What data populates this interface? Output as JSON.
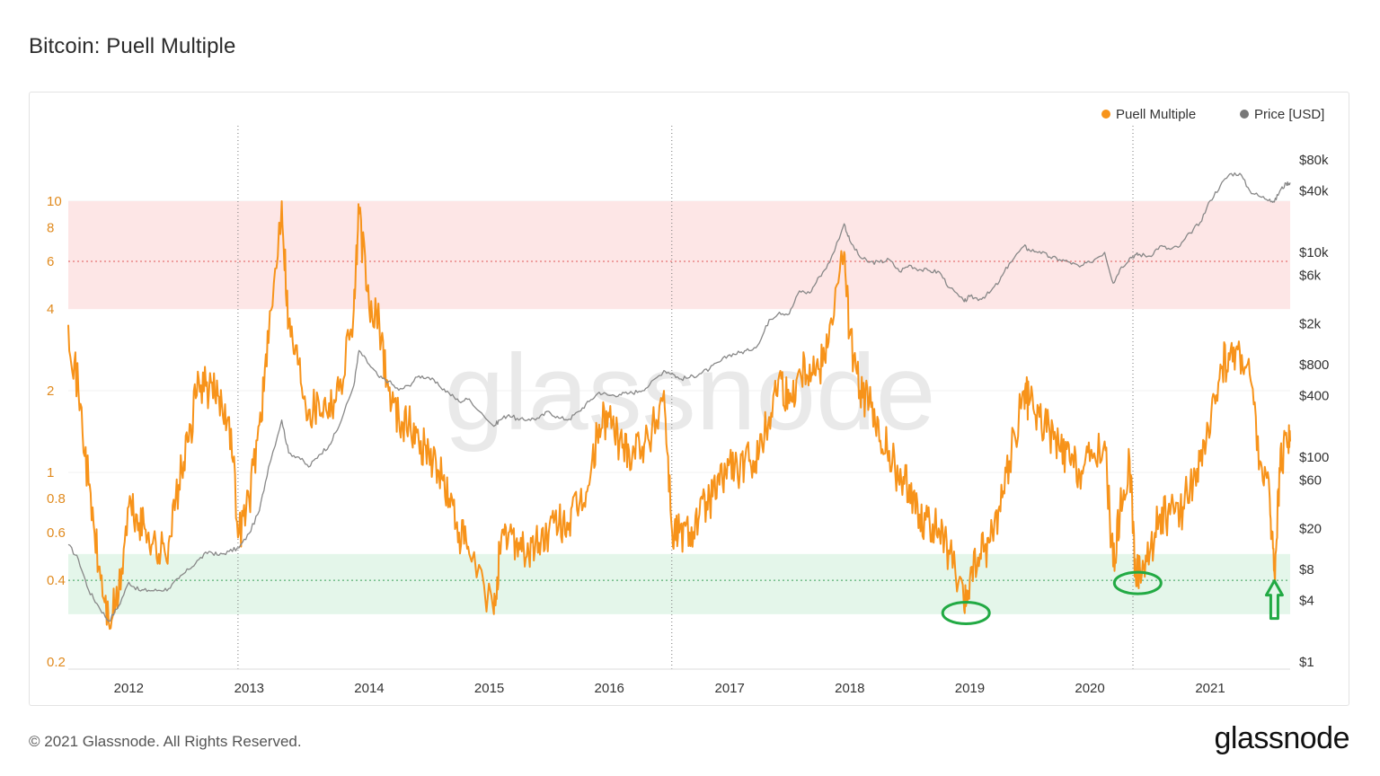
{
  "header": {
    "title": "Bitcoin: Puell Multiple"
  },
  "footer": {
    "copyright": "© 2021 Glassnode. All Rights Reserved.",
    "brand": "glassnode"
  },
  "watermark": "glassnode",
  "colors": {
    "puell": "#f7931a",
    "price": "#888888",
    "red_band": "#fde6e6",
    "green_band": "#e4f6ea",
    "annotation": "#22aa44"
  },
  "chart_data": {
    "type": "line",
    "title": "Bitcoin: Puell Multiple",
    "x_range": [
      "2011-07-01",
      "2021-09-01"
    ],
    "x_ticks": [
      "2012",
      "2013",
      "2014",
      "2015",
      "2016",
      "2017",
      "2018",
      "2019",
      "2020",
      "2021"
    ],
    "y_left": {
      "scale": "log",
      "ticks": [
        "10",
        "8",
        "6",
        "4",
        "2",
        "1",
        "0.8",
        "0.6",
        "0.4",
        "0.2"
      ]
    },
    "y_right": {
      "scale": "log",
      "ticks": [
        "$80k",
        "$40k",
        "$10k",
        "$6k",
        "$2k",
        "$800",
        "$400",
        "$100",
        "$60",
        "$20",
        "$8",
        "$4",
        "$1"
      ]
    },
    "legend": {
      "placement": "top-right",
      "items": [
        "Puell Multiple",
        "Price [USD]"
      ]
    },
    "bands": [
      {
        "label": "",
        "from": 4,
        "to": 10,
        "line": 6,
        "color": "red"
      },
      {
        "label": "",
        "from": 0.3,
        "to": 0.5,
        "line": 0.4,
        "color": "green"
      }
    ],
    "halvings": [
      "2012-11-28",
      "2016-07-09",
      "2020-05-11"
    ],
    "series": [
      {
        "name": "Puell Multiple",
        "axis": "left",
        "points": [
          [
            "2011-07-01",
            3.5
          ],
          [
            "2011-08-01",
            2.0
          ],
          [
            "2011-09-01",
            0.9
          ],
          [
            "2011-10-01",
            0.45
          ],
          [
            "2011-11-01",
            0.28
          ],
          [
            "2011-12-01",
            0.35
          ],
          [
            "2012-01-01",
            0.75
          ],
          [
            "2012-02-01",
            0.65
          ],
          [
            "2012-03-01",
            0.6
          ],
          [
            "2012-04-01",
            0.5
          ],
          [
            "2012-05-01",
            0.55
          ],
          [
            "2012-06-01",
            0.9
          ],
          [
            "2012-07-01",
            1.3
          ],
          [
            "2012-08-01",
            2.2
          ],
          [
            "2012-09-01",
            2.0
          ],
          [
            "2012-10-01",
            1.9
          ],
          [
            "2012-11-01",
            1.6
          ],
          [
            "2012-12-01",
            0.6
          ],
          [
            "2013-01-01",
            0.8
          ],
          [
            "2013-02-01",
            1.5
          ],
          [
            "2013-03-01",
            3.0
          ],
          [
            "2013-04-10",
            10.0
          ],
          [
            "2013-05-01",
            3.5
          ],
          [
            "2013-06-01",
            2.5
          ],
          [
            "2013-07-01",
            1.7
          ],
          [
            "2013-08-01",
            1.8
          ],
          [
            "2013-09-01",
            1.8
          ],
          [
            "2013-10-01",
            2.0
          ],
          [
            "2013-11-15",
            4.0
          ],
          [
            "2013-12-01",
            9.0
          ],
          [
            "2014-01-01",
            4.0
          ],
          [
            "2014-02-01",
            3.5
          ],
          [
            "2014-03-01",
            2.0
          ],
          [
            "2014-04-01",
            1.6
          ],
          [
            "2014-05-01",
            1.5
          ],
          [
            "2014-06-01",
            1.3
          ],
          [
            "2014-07-01",
            1.2
          ],
          [
            "2014-08-01",
            1.0
          ],
          [
            "2014-09-01",
            0.8
          ],
          [
            "2014-10-01",
            0.6
          ],
          [
            "2014-11-01",
            0.5
          ],
          [
            "2015-01-15",
            0.3
          ],
          [
            "2015-02-01",
            0.5
          ],
          [
            "2015-03-01",
            0.6
          ],
          [
            "2015-04-01",
            0.55
          ],
          [
            "2015-05-01",
            0.5
          ],
          [
            "2015-06-01",
            0.55
          ],
          [
            "2015-07-01",
            0.6
          ],
          [
            "2015-08-01",
            0.65
          ],
          [
            "2015-09-01",
            0.65
          ],
          [
            "2015-10-01",
            0.75
          ],
          [
            "2015-11-01",
            0.9
          ],
          [
            "2015-12-01",
            1.5
          ],
          [
            "2016-01-01",
            1.6
          ],
          [
            "2016-02-01",
            1.3
          ],
          [
            "2016-03-01",
            1.2
          ],
          [
            "2016-04-01",
            1.3
          ],
          [
            "2016-05-01",
            1.3
          ],
          [
            "2016-06-15",
            2.0
          ],
          [
            "2016-07-10",
            0.6
          ],
          [
            "2016-08-01",
            0.6
          ],
          [
            "2016-09-01",
            0.6
          ],
          [
            "2016-10-01",
            0.7
          ],
          [
            "2016-11-01",
            0.8
          ],
          [
            "2016-12-01",
            0.9
          ],
          [
            "2017-01-01",
            1.1
          ],
          [
            "2017-02-01",
            1.0
          ],
          [
            "2017-03-01",
            1.1
          ],
          [
            "2017-04-01",
            1.2
          ],
          [
            "2017-05-01",
            1.6
          ],
          [
            "2017-06-01",
            2.3
          ],
          [
            "2017-07-01",
            1.8
          ],
          [
            "2017-08-01",
            2.4
          ],
          [
            "2017-09-01",
            2.5
          ],
          [
            "2017-10-01",
            2.4
          ],
          [
            "2017-11-01",
            3.5
          ],
          [
            "2017-12-15",
            6.5
          ],
          [
            "2018-01-01",
            3.2
          ],
          [
            "2018-02-01",
            2.0
          ],
          [
            "2018-03-01",
            1.8
          ],
          [
            "2018-04-01",
            1.3
          ],
          [
            "2018-05-01",
            1.2
          ],
          [
            "2018-06-01",
            0.9
          ],
          [
            "2018-07-01",
            0.9
          ],
          [
            "2018-08-01",
            0.7
          ],
          [
            "2018-09-01",
            0.65
          ],
          [
            "2018-10-01",
            0.6
          ],
          [
            "2018-11-01",
            0.5
          ],
          [
            "2018-12-15",
            0.31
          ],
          [
            "2019-01-01",
            0.4
          ],
          [
            "2019-02-01",
            0.5
          ],
          [
            "2019-03-01",
            0.55
          ],
          [
            "2019-04-01",
            0.75
          ],
          [
            "2019-05-01",
            1.1
          ],
          [
            "2019-06-15",
            2.0
          ],
          [
            "2019-07-01",
            1.8
          ],
          [
            "2019-08-01",
            1.6
          ],
          [
            "2019-09-01",
            1.4
          ],
          [
            "2019-10-01",
            1.2
          ],
          [
            "2019-11-01",
            1.1
          ],
          [
            "2019-12-01",
            1.0
          ],
          [
            "2020-01-01",
            1.1
          ],
          [
            "2020-02-15",
            1.3
          ],
          [
            "2020-03-12",
            0.45
          ],
          [
            "2020-04-01",
            0.7
          ],
          [
            "2020-05-01",
            1.1
          ],
          [
            "2020-05-20",
            0.4
          ],
          [
            "2020-06-01",
            0.45
          ],
          [
            "2020-07-01",
            0.5
          ],
          [
            "2020-08-01",
            0.7
          ],
          [
            "2020-09-01",
            0.7
          ],
          [
            "2020-10-01",
            0.7
          ],
          [
            "2020-11-01",
            0.9
          ],
          [
            "2020-12-01",
            1.1
          ],
          [
            "2021-01-01",
            1.4
          ],
          [
            "2021-02-01",
            2.5
          ],
          [
            "2021-03-01",
            2.6
          ],
          [
            "2021-04-01",
            2.8
          ],
          [
            "2021-05-01",
            2.3
          ],
          [
            "2021-06-01",
            1.1
          ],
          [
            "2021-07-01",
            0.8
          ],
          [
            "2021-07-15",
            0.43
          ],
          [
            "2021-08-01",
            1.0
          ],
          [
            "2021-08-20",
            1.4
          ],
          [
            "2021-09-01",
            1.3
          ]
        ]
      },
      {
        "name": "Price [USD]",
        "axis": "right",
        "points": [
          [
            "2011-07-01",
            14
          ],
          [
            "2011-08-01",
            10
          ],
          [
            "2011-09-01",
            5
          ],
          [
            "2011-10-01",
            3.5
          ],
          [
            "2011-11-01",
            2.5
          ],
          [
            "2011-12-01",
            3.5
          ],
          [
            "2012-01-01",
            6
          ],
          [
            "2012-02-01",
            5
          ],
          [
            "2012-03-01",
            5
          ],
          [
            "2012-04-01",
            5
          ],
          [
            "2012-05-01",
            5.2
          ],
          [
            "2012-06-01",
            6.5
          ],
          [
            "2012-07-01",
            8
          ],
          [
            "2012-08-01",
            10
          ],
          [
            "2012-09-01",
            12
          ],
          [
            "2012-10-01",
            11
          ],
          [
            "2012-11-01",
            12
          ],
          [
            "2012-12-01",
            13
          ],
          [
            "2013-01-01",
            18
          ],
          [
            "2013-02-01",
            30
          ],
          [
            "2013-03-01",
            80
          ],
          [
            "2013-04-10",
            230
          ],
          [
            "2013-05-01",
            110
          ],
          [
            "2013-06-01",
            100
          ],
          [
            "2013-07-01",
            80
          ],
          [
            "2013-08-01",
            105
          ],
          [
            "2013-09-01",
            130
          ],
          [
            "2013-10-01",
            200
          ],
          [
            "2013-11-15",
            500
          ],
          [
            "2013-12-01",
            1100
          ],
          [
            "2014-01-01",
            800
          ],
          [
            "2014-02-01",
            600
          ],
          [
            "2014-03-01",
            550
          ],
          [
            "2014-04-01",
            450
          ],
          [
            "2014-05-01",
            500
          ],
          [
            "2014-06-01",
            620
          ],
          [
            "2014-07-01",
            600
          ],
          [
            "2014-08-01",
            500
          ],
          [
            "2014-09-01",
            420
          ],
          [
            "2014-10-01",
            350
          ],
          [
            "2014-11-01",
            370
          ],
          [
            "2015-01-15",
            200
          ],
          [
            "2015-02-01",
            230
          ],
          [
            "2015-03-01",
            260
          ],
          [
            "2015-04-01",
            230
          ],
          [
            "2015-05-01",
            235
          ],
          [
            "2015-06-01",
            240
          ],
          [
            "2015-07-01",
            280
          ],
          [
            "2015-08-01",
            240
          ],
          [
            "2015-09-01",
            235
          ],
          [
            "2015-10-01",
            280
          ],
          [
            "2015-11-01",
            350
          ],
          [
            "2015-12-01",
            430
          ],
          [
            "2016-01-01",
            400
          ],
          [
            "2016-02-01",
            410
          ],
          [
            "2016-03-01",
            420
          ],
          [
            "2016-04-01",
            440
          ],
          [
            "2016-05-01",
            500
          ],
          [
            "2016-06-15",
            700
          ],
          [
            "2016-07-10",
            660
          ],
          [
            "2016-08-01",
            580
          ],
          [
            "2016-09-01",
            600
          ],
          [
            "2016-10-01",
            650
          ],
          [
            "2016-11-01",
            730
          ],
          [
            "2016-12-01",
            850
          ],
          [
            "2017-01-01",
            1000
          ],
          [
            "2017-02-01",
            1050
          ],
          [
            "2017-03-01",
            1100
          ],
          [
            "2017-04-01",
            1300
          ],
          [
            "2017-05-01",
            2200
          ],
          [
            "2017-06-01",
            2600
          ],
          [
            "2017-07-01",
            2500
          ],
          [
            "2017-08-01",
            4200
          ],
          [
            "2017-09-01",
            4000
          ],
          [
            "2017-10-01",
            5800
          ],
          [
            "2017-11-01",
            8000
          ],
          [
            "2017-12-15",
            19000
          ],
          [
            "2018-01-01",
            13000
          ],
          [
            "2018-02-01",
            9000
          ],
          [
            "2018-03-01",
            8000
          ],
          [
            "2018-04-01",
            8000
          ],
          [
            "2018-05-01",
            8500
          ],
          [
            "2018-06-01",
            6500
          ],
          [
            "2018-07-01",
            7500
          ],
          [
            "2018-08-01",
            6800
          ],
          [
            "2018-09-01",
            6600
          ],
          [
            "2018-10-01",
            6400
          ],
          [
            "2018-11-01",
            4500
          ],
          [
            "2018-12-15",
            3300
          ],
          [
            "2019-01-01",
            3700
          ],
          [
            "2019-02-01",
            3500
          ],
          [
            "2019-03-01",
            4000
          ],
          [
            "2019-04-01",
            5200
          ],
          [
            "2019-05-01",
            7800
          ],
          [
            "2019-06-15",
            11500
          ],
          [
            "2019-07-01",
            10500
          ],
          [
            "2019-08-01",
            10200
          ],
          [
            "2019-09-01",
            9000
          ],
          [
            "2019-10-01",
            8500
          ],
          [
            "2019-11-01",
            8000
          ],
          [
            "2019-12-01",
            7200
          ],
          [
            "2020-01-01",
            8000
          ],
          [
            "2020-02-15",
            10000
          ],
          [
            "2020-03-12",
            5000
          ],
          [
            "2020-04-01",
            6800
          ],
          [
            "2020-05-01",
            8800
          ],
          [
            "2020-05-20",
            9500
          ],
          [
            "2020-06-01",
            9500
          ],
          [
            "2020-07-01",
            9200
          ],
          [
            "2020-08-01",
            11500
          ],
          [
            "2020-09-01",
            10700
          ],
          [
            "2020-10-01",
            11500
          ],
          [
            "2020-11-01",
            15500
          ],
          [
            "2020-12-01",
            19500
          ],
          [
            "2021-01-01",
            32000
          ],
          [
            "2021-02-01",
            45000
          ],
          [
            "2021-03-01",
            58000
          ],
          [
            "2021-04-01",
            59000
          ],
          [
            "2021-05-01",
            40000
          ],
          [
            "2021-06-01",
            35000
          ],
          [
            "2021-07-01",
            33000
          ],
          [
            "2021-07-15",
            31000
          ],
          [
            "2021-08-01",
            40000
          ],
          [
            "2021-08-20",
            47000
          ],
          [
            "2021-09-01",
            48000
          ]
        ]
      }
    ],
    "annotations": [
      {
        "type": "ellipse",
        "date": "2018-12-15",
        "value": 0.31
      },
      {
        "type": "ellipse",
        "date": "2020-05-20",
        "value": 0.4
      },
      {
        "type": "arrow-up",
        "date": "2021-07-15",
        "value": 0.43
      }
    ]
  }
}
